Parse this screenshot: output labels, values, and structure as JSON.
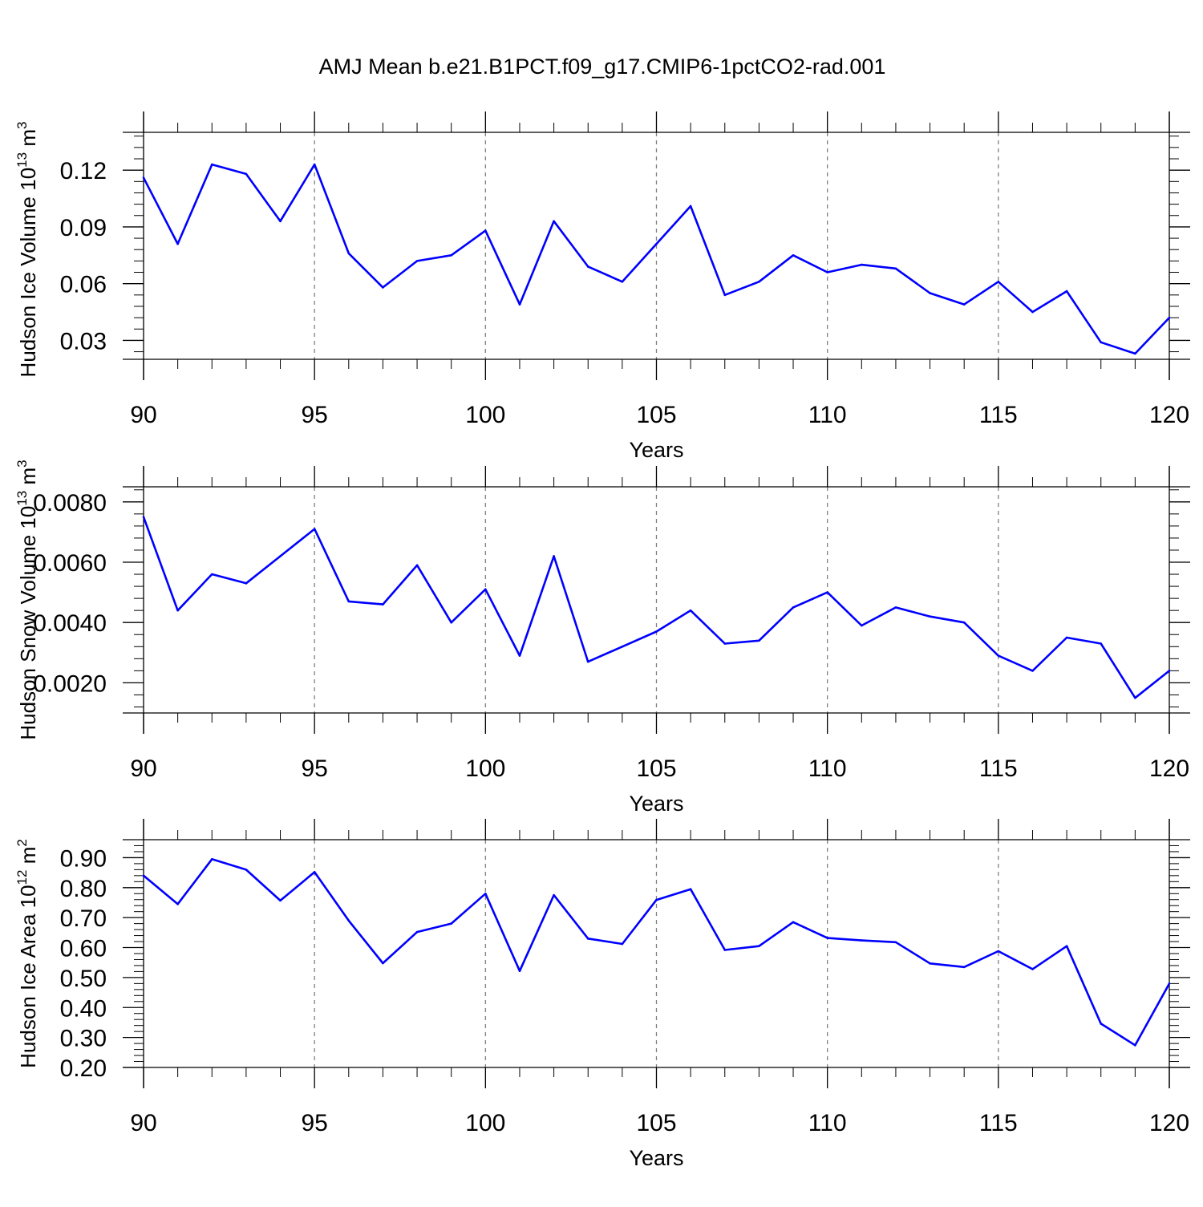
{
  "figure_title": "AMJ Mean b.e21.B1PCT.f09_g17.CMIP6-1pctCO2-rad.001",
  "colors": {
    "line": "#0000ff",
    "axes": "#000000",
    "grid": "#808080"
  },
  "chart_data": [
    {
      "type": "line",
      "title": "AMJ Mean b.e21.B1PCT.f09_g17.CMIP6-1pctCO2-rad.001",
      "xlabel": "Years",
      "ylabel": "Hudson Ice Volume 10",
      "ylabel_sup": "13",
      "ylabel_unit": " m",
      "ylabel_unit_sup": "3",
      "xlim": [
        90,
        120
      ],
      "ylim": [
        0.02,
        0.14
      ],
      "x_ticks": [
        90,
        95,
        100,
        105,
        110,
        115,
        120
      ],
      "x_tick_labels": [
        "90",
        "95",
        "100",
        "105",
        "110",
        "115",
        "120"
      ],
      "y_ticks": [
        0.03,
        0.06,
        0.09,
        0.12
      ],
      "y_tick_labels": [
        "0.03",
        "0.06",
        "0.09",
        "0.12"
      ],
      "grid": "vertical dashed at major x ticks",
      "x": [
        90,
        91,
        92,
        93,
        94,
        95,
        96,
        97,
        98,
        99,
        100,
        101,
        102,
        103,
        104,
        105,
        106,
        107,
        108,
        109,
        110,
        111,
        112,
        113,
        114,
        115,
        116,
        117,
        118,
        119,
        120
      ],
      "values": [
        0.116,
        0.081,
        0.123,
        0.118,
        0.093,
        0.123,
        0.076,
        0.058,
        0.072,
        0.075,
        0.088,
        0.049,
        0.093,
        0.069,
        0.061,
        0.081,
        0.101,
        0.054,
        0.061,
        0.075,
        0.066,
        0.07,
        0.068,
        0.055,
        0.049,
        0.061,
        0.045,
        0.056,
        0.029,
        0.023,
        0.042
      ]
    },
    {
      "type": "line",
      "xlabel": "Years",
      "ylabel": "Hudson Snow Volume 10",
      "ylabel_sup": "13",
      "ylabel_unit": " m",
      "ylabel_unit_sup": "3",
      "xlim": [
        90,
        120
      ],
      "ylim": [
        0.001,
        0.0085
      ],
      "x_ticks": [
        90,
        95,
        100,
        105,
        110,
        115,
        120
      ],
      "x_tick_labels": [
        "90",
        "95",
        "100",
        "105",
        "110",
        "115",
        "120"
      ],
      "y_ticks": [
        0.002,
        0.004,
        0.006,
        0.008
      ],
      "y_tick_labels": [
        "0.0020",
        "0.0040",
        "0.0060",
        "0.0080"
      ],
      "grid": "vertical dashed at major x ticks",
      "x": [
        90,
        91,
        92,
        93,
        94,
        95,
        96,
        97,
        98,
        99,
        100,
        101,
        102,
        103,
        104,
        105,
        106,
        107,
        108,
        109,
        110,
        111,
        112,
        113,
        114,
        115,
        116,
        117,
        118,
        119,
        120
      ],
      "values": [
        0.0075,
        0.0044,
        0.0056,
        0.0053,
        0.0062,
        0.0071,
        0.0047,
        0.0046,
        0.0059,
        0.004,
        0.0051,
        0.0029,
        0.0062,
        0.0027,
        0.0032,
        0.0037,
        0.0044,
        0.0033,
        0.0034,
        0.0045,
        0.005,
        0.0039,
        0.0045,
        0.0042,
        0.004,
        0.0029,
        0.0024,
        0.0035,
        0.0033,
        0.0015,
        0.0024
      ]
    },
    {
      "type": "line",
      "xlabel": "Years",
      "ylabel": "Hudson Ice Area 10",
      "ylabel_sup": "12",
      "ylabel_unit": " m",
      "ylabel_unit_sup": "2",
      "xlim": [
        90,
        120
      ],
      "ylim": [
        0.2,
        0.96
      ],
      "x_ticks": [
        90,
        95,
        100,
        105,
        110,
        115,
        120
      ],
      "x_tick_labels": [
        "90",
        "95",
        "100",
        "105",
        "110",
        "115",
        "120"
      ],
      "y_ticks": [
        0.2,
        0.3,
        0.4,
        0.5,
        0.6,
        0.7,
        0.8,
        0.9
      ],
      "y_tick_labels": [
        "0.20",
        "0.30",
        "0.40",
        "0.50",
        "0.60",
        "0.70",
        "0.80",
        "0.90"
      ],
      "grid": "vertical dashed at major x ticks",
      "x": [
        90,
        91,
        92,
        93,
        94,
        95,
        96,
        97,
        98,
        99,
        100,
        101,
        102,
        103,
        104,
        105,
        106,
        107,
        108,
        109,
        110,
        111,
        112,
        113,
        114,
        115,
        116,
        117,
        118,
        119,
        120
      ],
      "values": [
        0.84,
        0.745,
        0.895,
        0.86,
        0.757,
        0.852,
        0.69,
        0.548,
        0.652,
        0.68,
        0.78,
        0.522,
        0.775,
        0.63,
        0.612,
        0.759,
        0.795,
        0.592,
        0.605,
        0.685,
        0.632,
        0.624,
        0.618,
        0.547,
        0.535,
        0.588,
        0.528,
        0.605,
        0.346,
        0.274,
        0.48
      ]
    }
  ]
}
